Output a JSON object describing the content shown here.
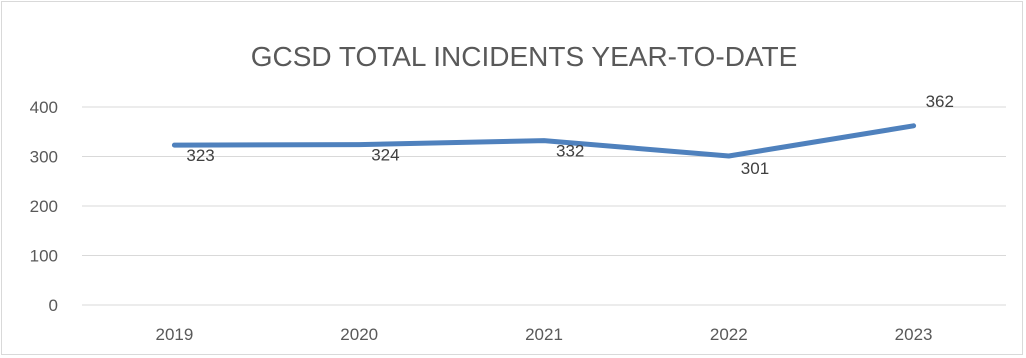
{
  "chart_data": {
    "type": "line",
    "title": "GCSD TOTAL INCIDENTS YEAR-TO-DATE",
    "xlabel": "",
    "ylabel": "",
    "categories": [
      "2019",
      "2020",
      "2021",
      "2022",
      "2023"
    ],
    "series": [
      {
        "values": [
          323,
          324,
          332,
          301,
          362
        ],
        "color": "#4f81bd"
      }
    ],
    "ylim": [
      0,
      400
    ],
    "yticks": [
      "0",
      "100",
      "200",
      "300",
      "400"
    ],
    "grid": true,
    "legend": "none",
    "data_labels": [
      "323",
      "324",
      "332",
      "301",
      "362"
    ]
  }
}
